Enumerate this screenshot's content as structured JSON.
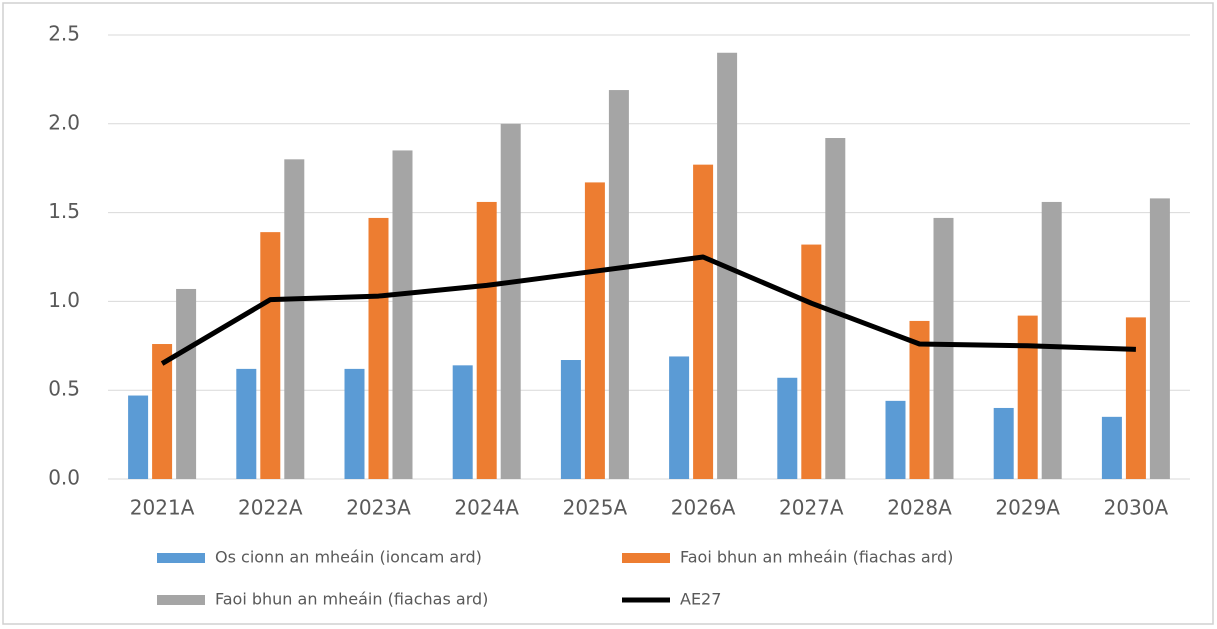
{
  "chart_data": {
    "type": "bar",
    "categories": [
      "2021A",
      "2022A",
      "2023A",
      "2024A",
      "2025A",
      "2026A",
      "2027A",
      "2028A",
      "2029A",
      "2030A"
    ],
    "series": [
      {
        "name": "Os cionn an mheáin (ioncam ard)",
        "color": "#5b9bd5",
        "values": [
          0.47,
          0.62,
          0.62,
          0.64,
          0.67,
          0.69,
          0.57,
          0.44,
          0.4,
          0.35
        ]
      },
      {
        "name": "Faoi bhun an mheáin (fiachas ard)",
        "color": "#ed7d31",
        "values": [
          0.76,
          1.39,
          1.47,
          1.56,
          1.67,
          1.77,
          1.32,
          0.89,
          0.92,
          0.91
        ]
      },
      {
        "name": "Faoi bhun an mheáin (fiachas ard)",
        "color": "#a5a5a5",
        "values": [
          1.07,
          1.8,
          1.85,
          2.0,
          2.19,
          2.4,
          1.92,
          1.47,
          1.56,
          1.58
        ]
      },
      {
        "name": "AE27",
        "color": "#000000",
        "type": "line",
        "values": [
          0.65,
          1.01,
          1.03,
          1.09,
          1.17,
          1.25,
          0.99,
          0.76,
          0.75,
          0.73
        ]
      }
    ],
    "ylim": [
      0,
      2.5
    ],
    "yticks": [
      {
        "value": 0,
        "label": "0.0"
      },
      0.5,
      {
        "value": 1,
        "label": "1.0"
      },
      1.5,
      {
        "value": 2,
        "label": "2.0"
      },
      2.5
    ],
    "grid": true
  }
}
